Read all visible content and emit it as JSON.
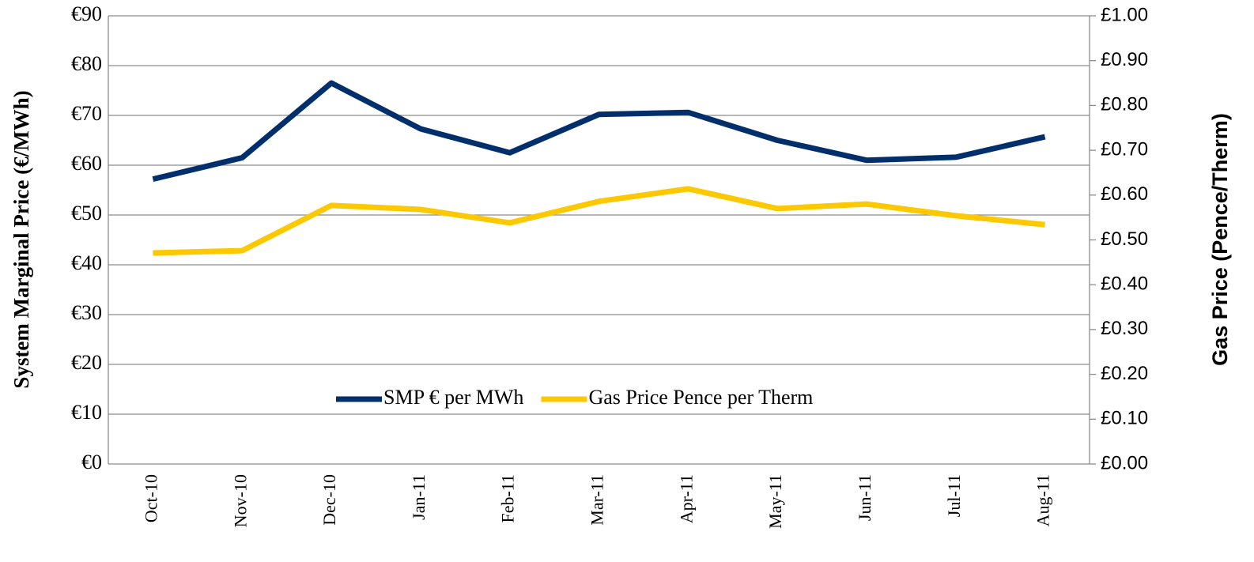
{
  "chart_data": {
    "type": "line",
    "y_label": "System Marginal Price (€/MWh)",
    "y2_label": "Gas Price (Pence/Therm)",
    "categories": [
      "Oct-10",
      "Nov-10",
      "Dec-10",
      "Jan-11",
      "Feb-11",
      "Mar-11",
      "Apr-11",
      "May-11",
      "Jun-11",
      "Jul-11",
      "Aug-11"
    ],
    "series": [
      {
        "name": "SMP € per MWh",
        "color": "#002f6c",
        "values": [
          57.2,
          61.5,
          76.5,
          67.3,
          62.5,
          70.2,
          70.6,
          65.0,
          61.0,
          61.6,
          65.7
        ]
      },
      {
        "name": "Gas Price Pence per Therm",
        "color": "#fcc800",
        "axis": "y2",
        "values": [
          0.471,
          0.476,
          0.577,
          0.568,
          0.538,
          0.586,
          0.614,
          0.57,
          0.58,
          0.554,
          0.534
        ]
      }
    ],
    "ylim": [
      0,
      90
    ],
    "yticks": [
      {
        "value": 0,
        "label": "€0"
      },
      {
        "value": 10,
        "label": "€10"
      },
      {
        "value": 20,
        "label": "€20"
      },
      {
        "value": 30,
        "label": "€30"
      },
      {
        "value": 40,
        "label": "€40"
      },
      {
        "value": 50,
        "label": "€50"
      },
      {
        "value": 60,
        "label": "€60"
      },
      {
        "value": 70,
        "label": "€70"
      },
      {
        "value": 80,
        "label": "€80"
      },
      {
        "value": 90,
        "label": "€90"
      }
    ],
    "y2lim": [
      0,
      1
    ],
    "y2ticks": [
      {
        "value": 0,
        "label": "£0.00"
      },
      {
        "value": 0.1,
        "label": "£0.10"
      },
      {
        "value": 0.2,
        "label": "£0.20"
      },
      {
        "value": 0.3,
        "label": "£0.30"
      },
      {
        "value": 0.4,
        "label": "£0.40"
      },
      {
        "value": 0.5,
        "label": "£0.50"
      },
      {
        "value": 0.6,
        "label": "£0.60"
      },
      {
        "value": 0.7,
        "label": "£0.70"
      },
      {
        "value": 0.8,
        "label": "£0.80"
      },
      {
        "value": 0.9,
        "label": "£0.90"
      },
      {
        "value": 1,
        "label": "£1.00"
      }
    ],
    "grid": true,
    "legend": "lower center"
  }
}
